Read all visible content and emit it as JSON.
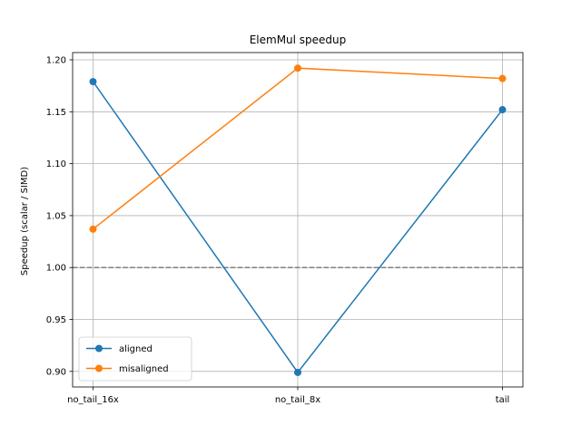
{
  "chart_data": {
    "type": "line",
    "title": "ElemMul speedup",
    "xlabel": "",
    "ylabel": "Speedup (scalar / SIMD)",
    "categories": [
      "no_tail_16x",
      "no_tail_8x",
      "tail"
    ],
    "ylim": [
      0.885,
      1.207
    ],
    "yticks": [
      0.9,
      0.95,
      1.0,
      1.05,
      1.1,
      1.15,
      1.2
    ],
    "ytick_labels": [
      "0.90",
      "0.95",
      "1.00",
      "1.05",
      "1.10",
      "1.15",
      "1.20"
    ],
    "grid": true,
    "reference_line": {
      "y": 1.0,
      "style": "dashed",
      "color": "#808080"
    },
    "legend_position": "lower-left",
    "series": [
      {
        "name": "aligned",
        "color": "#1f77b4",
        "values": [
          1.179,
          0.899,
          1.152
        ]
      },
      {
        "name": "misaligned",
        "color": "#ff7f0e",
        "values": [
          1.037,
          1.192,
          1.182
        ]
      }
    ]
  }
}
